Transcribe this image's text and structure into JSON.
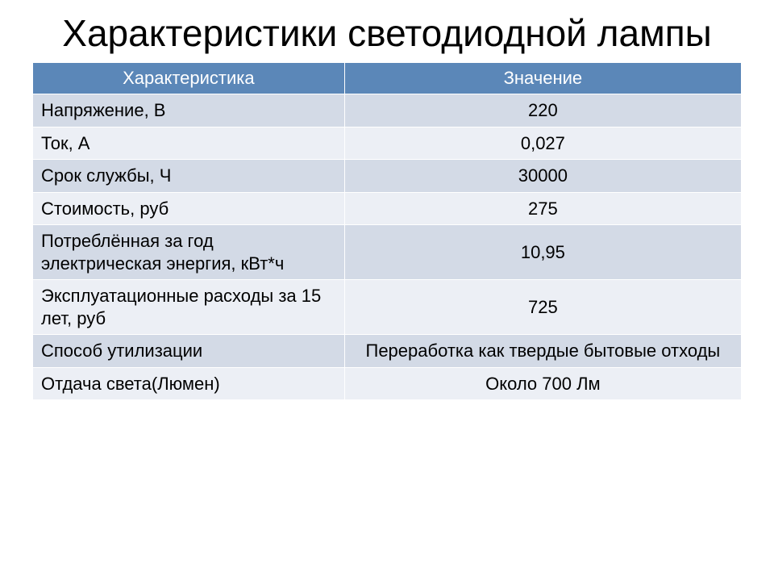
{
  "title": "Характеристики светодиодной лампы",
  "table": {
    "header_bg": "#5b87b8",
    "header_fg": "#ffffff",
    "band_a_bg": "#d3dae6",
    "band_b_bg": "#eceff5",
    "text_color": "#000000",
    "font_size_header": 22,
    "font_size_cell": 22,
    "columns": [
      {
        "label": "Характеристика",
        "align": "left",
        "width_pct": 44
      },
      {
        "label": "Значение",
        "align": "center",
        "width_pct": 56
      }
    ],
    "rows": [
      {
        "label": "Напряжение, В",
        "value": "220"
      },
      {
        "label": "Ток, А",
        "value": "0,027"
      },
      {
        "label": "Срок службы, Ч",
        "value": "30000"
      },
      {
        "label": "Стоимость, руб",
        "value": "275"
      },
      {
        "label": "Потреблённая за год электрическая энергия, кВт*ч",
        "value": "10,95"
      },
      {
        "label": "Эксплуатационные расходы за 15 лет, руб",
        "value": "725"
      },
      {
        "label": "Способ утилизации",
        "value": "Переработка как твердые бытовые отходы"
      },
      {
        "label": "Отдача света(Люмен)",
        "value": "Около 700 Лм"
      }
    ]
  }
}
